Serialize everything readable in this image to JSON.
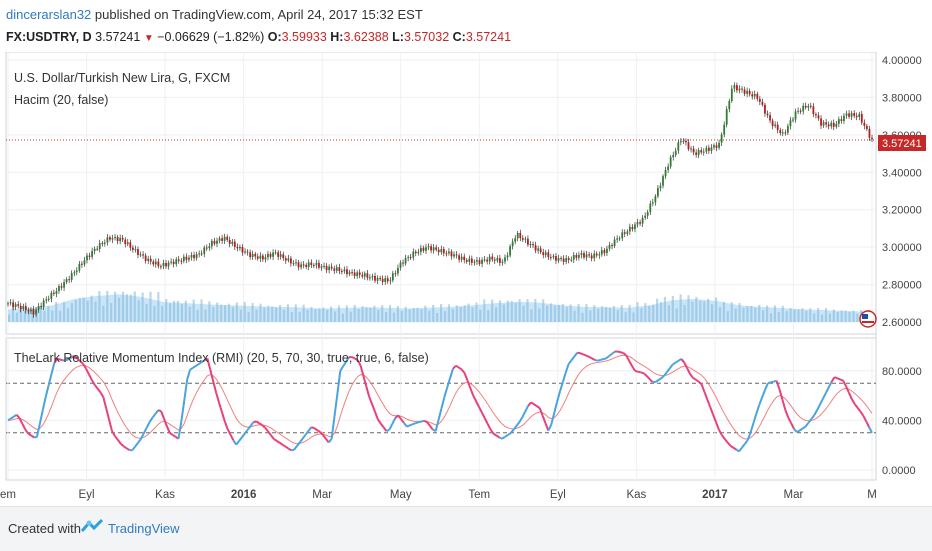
{
  "header": {
    "author": "dincerarslan32",
    "published_text": " published on TradingView.com, April 24, 2017 15:32 EST",
    "symbol": "FX:USDTRY, D",
    "last": "3.57241",
    "change": "−0.06629 (−1.82%)",
    "o_label": "O:",
    "o_value": "3.59933",
    "h_label": "H:",
    "h_value": "3.62388",
    "l_label": "L:",
    "l_value": "3.57032",
    "c_label": "C:",
    "c_value": "3.57241"
  },
  "price_pane": {
    "title": "U.S. Dollar/Turkish New Lira, G, FXCM",
    "subtitle": "Hacim (20, false)",
    "last_price_label": "3.57241"
  },
  "rmi_pane": {
    "title": "TheLark Relative Momentum Index (RMI) (20, 5, 70, 30, true, true, 6, false)"
  },
  "footer": {
    "created_with": "Created with",
    "brand": "TradingView"
  },
  "colors": {
    "up_candle": "#2e7d32",
    "down_candle": "#b71c1c",
    "volume": "#7fb8de",
    "volume_ma": "#9fd0f0",
    "rmi_up": "#4aa3df",
    "rmi_down": "#e8407a",
    "signal": "#f08080",
    "last_price": "#c62828"
  },
  "chart_data": [
    {
      "type": "candlestick",
      "name": "USDTRY daily price",
      "y_ticks": [
        "4.00000",
        "3.80000",
        "3.60000",
        "3.40000",
        "3.20000",
        "3.00000",
        "2.80000",
        "2.60000"
      ],
      "ylim": [
        2.6,
        4.0
      ],
      "x_ticks": [
        "em",
        "Eyl",
        "Kas",
        "2016",
        "Mar",
        "May",
        "Tem",
        "Eyl",
        "Kas",
        "2017",
        "Mar",
        "M"
      ],
      "last_price": 3.57241,
      "close_series": [
        2.7,
        2.68,
        2.65,
        2.72,
        2.78,
        2.85,
        2.93,
        3.0,
        3.05,
        3.04,
        2.98,
        2.93,
        2.9,
        2.92,
        2.94,
        2.96,
        3.02,
        3.05,
        3.0,
        2.96,
        2.94,
        2.97,
        2.93,
        2.9,
        2.91,
        2.89,
        2.88,
        2.86,
        2.85,
        2.83,
        2.82,
        2.92,
        2.97,
        3.0,
        2.98,
        2.96,
        2.93,
        2.92,
        2.94,
        2.92,
        3.07,
        3.02,
        2.97,
        2.94,
        2.93,
        2.96,
        2.95,
        2.98,
        3.05,
        3.1,
        3.15,
        3.28,
        3.45,
        3.58,
        3.5,
        3.52,
        3.55,
        3.86,
        3.83,
        3.8,
        3.67,
        3.6,
        3.72,
        3.76,
        3.66,
        3.65,
        3.71,
        3.7,
        3.57
      ]
    },
    {
      "type": "bar",
      "name": "Volume",
      "ma_series": [
        0.3,
        0.32,
        0.4,
        0.55,
        0.62,
        0.66,
        0.6,
        0.48,
        0.45,
        0.42,
        0.4,
        0.38,
        0.36,
        0.35,
        0.32,
        0.33,
        0.35,
        0.34,
        0.32,
        0.34,
        0.36,
        0.4,
        0.45,
        0.48,
        0.46,
        0.4,
        0.36,
        0.35,
        0.34,
        0.4,
        0.52,
        0.55,
        0.5,
        0.4,
        0.36,
        0.33,
        0.3,
        0.28,
        0.26,
        0.24
      ]
    },
    {
      "type": "line",
      "name": "RMI",
      "y_ticks": [
        "80.0000",
        "40.0000",
        "0.0000"
      ],
      "ylim": [
        0,
        100
      ],
      "overbought": 70,
      "oversold": 30,
      "rmi_series": [
        40,
        45,
        30,
        25,
        60,
        90,
        88,
        92,
        85,
        70,
        60,
        30,
        20,
        15,
        25,
        40,
        50,
        30,
        25,
        80,
        85,
        90,
        60,
        35,
        20,
        30,
        40,
        35,
        25,
        20,
        15,
        25,
        35,
        30,
        20,
        80,
        92,
        88,
        60,
        40,
        30,
        45,
        35,
        38,
        40,
        30,
        60,
        85,
        80,
        60,
        45,
        30,
        25,
        30,
        40,
        55,
        50,
        30,
        60,
        85,
        95,
        92,
        88,
        90,
        96,
        94,
        80,
        78,
        70,
        75,
        85,
        90,
        75,
        70,
        50,
        30,
        20,
        15,
        25,
        50,
        70,
        72,
        45,
        30,
        35,
        45,
        60,
        75,
        72,
        55,
        45,
        30
      ]
    }
  ]
}
